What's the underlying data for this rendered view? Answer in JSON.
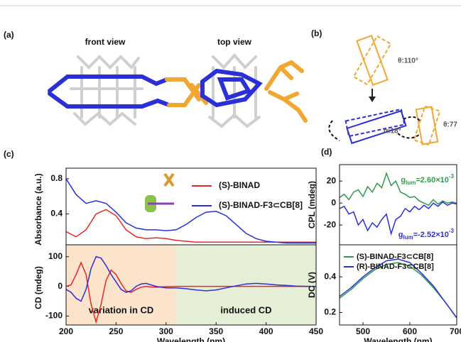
{
  "figure": {
    "panel_labels": [
      "(a)",
      "(b)",
      "(c)",
      "(d)"
    ],
    "front_view": "front view",
    "top_view": "top view",
    "theta_1": "θ:110°",
    "alpha": "α:18°",
    "theta_2": "θ:77"
  },
  "chart_data": [
    {
      "type": "line",
      "ylabel": "Absorbance (a.u.)",
      "xlim": [
        200,
        450
      ],
      "ylim": [
        0.05,
        0.92
      ],
      "yticks": [
        0.4,
        0.8
      ],
      "legend": "upper right",
      "x": [
        200,
        210,
        220,
        230,
        240,
        250,
        260,
        270,
        280,
        290,
        300,
        310,
        320,
        330,
        340,
        350,
        360,
        370,
        380,
        390,
        400,
        410,
        420,
        430,
        440,
        450
      ],
      "series": [
        {
          "name": "(S)-BINAD",
          "color": "#e8262a",
          "values": [
            0.2,
            0.14,
            0.22,
            0.4,
            0.45,
            0.38,
            0.22,
            0.14,
            0.12,
            0.13,
            0.12,
            0.1,
            0.09,
            0.08,
            0.08,
            0.08,
            0.08,
            0.08,
            0.08,
            0.08,
            0.08,
            0.08,
            0.08,
            0.08,
            0.08,
            0.08
          ]
        },
        {
          "name": "(S)-BINAD-F3⊂CB[8]",
          "color": "#2b2fd6",
          "values": [
            0.8,
            0.62,
            0.52,
            0.55,
            0.52,
            0.42,
            0.3,
            0.24,
            0.22,
            0.22,
            0.21,
            0.22,
            0.28,
            0.36,
            0.42,
            0.43,
            0.38,
            0.28,
            0.18,
            0.12,
            0.09,
            0.08,
            0.07,
            0.07,
            0.07,
            0.07
          ]
        }
      ]
    },
    {
      "type": "line",
      "ylabel": "CD (mdeg)",
      "xlabel": "Wavelength (nm)",
      "xlim": [
        200,
        450
      ],
      "ylim": [
        -130,
        140
      ],
      "xticks": [
        200,
        250,
        300,
        350,
        400,
        450
      ],
      "yticks": [
        -100,
        0,
        100
      ],
      "regions": [
        {
          "from": 200,
          "to": 310,
          "color": "#fbe3cc",
          "label": "variation in CD"
        },
        {
          "from": 310,
          "to": 450,
          "color": "#e4efd6",
          "label": "induced CD"
        }
      ],
      "x": [
        200,
        205,
        210,
        215,
        220,
        225,
        230,
        235,
        240,
        245,
        250,
        255,
        260,
        265,
        270,
        275,
        280,
        285,
        290,
        295,
        300,
        310,
        320,
        330,
        340,
        350,
        360,
        370,
        380,
        390,
        400,
        410,
        420,
        430,
        440,
        450
      ],
      "series": [
        {
          "color": "#e8262a",
          "values": [
            0,
            5,
            40,
            80,
            40,
            -60,
            -120,
            -60,
            20,
            55,
            40,
            10,
            -15,
            -20,
            -10,
            -3,
            0,
            -2,
            -3,
            -2,
            -1,
            0,
            0,
            0,
            0,
            0,
            0,
            0,
            0,
            0,
            0,
            0,
            0,
            0,
            0,
            0
          ]
        },
        {
          "color": "#2b2fd6",
          "values": [
            -10,
            -20,
            -40,
            -50,
            -10,
            60,
            100,
            95,
            70,
            40,
            15,
            -10,
            -20,
            -15,
            0,
            8,
            10,
            5,
            0,
            -3,
            -5,
            -5,
            -8,
            -12,
            -15,
            -12,
            -5,
            2,
            8,
            10,
            8,
            5,
            3,
            1,
            0,
            0
          ]
        }
      ]
    },
    {
      "type": "line",
      "ylabel": "CPL (mdeg)",
      "xlim": [
        450,
        700
      ],
      "ylim": [
        -38,
        35
      ],
      "yticks": [
        -20,
        0,
        20
      ],
      "annotations": [
        {
          "base": "g",
          "sub": "lum",
          "text": "=2.60×10",
          "sup": "-3",
          "color": "#2e9a4a"
        },
        {
          "base": "g",
          "sub": "lum",
          "text": "=-2.52×10",
          "sup": "-3",
          "color": "#2b2fd6"
        }
      ],
      "x": [
        450,
        460,
        470,
        480,
        490,
        500,
        510,
        520,
        530,
        540,
        550,
        560,
        570,
        580,
        590,
        600,
        610,
        620,
        630,
        640,
        650,
        660,
        670,
        680,
        690,
        700
      ],
      "series": [
        {
          "color": "#2e9a4a",
          "values": [
            5,
            8,
            3,
            10,
            12,
            6,
            15,
            10,
            18,
            14,
            27,
            16,
            20,
            10,
            8,
            5,
            6,
            2,
            0,
            -2,
            3,
            -1,
            2,
            0,
            1,
            0
          ]
        },
        {
          "color": "#2b2fd6",
          "values": [
            -5,
            -3,
            -10,
            -8,
            -20,
            -15,
            -25,
            -18,
            -22,
            -15,
            -10,
            -28,
            -15,
            -12,
            -5,
            -8,
            -3,
            -6,
            -2,
            -5,
            0,
            -3,
            1,
            -2,
            0,
            -1
          ]
        }
      ]
    },
    {
      "type": "line",
      "ylabel": "DC (V)",
      "xlabel": "Wavelength (nm)",
      "xlim": [
        450,
        700
      ],
      "ylim": [
        0.13,
        0.58
      ],
      "xticks": [
        500,
        600,
        700
      ],
      "yticks": [
        0.2,
        0.4
      ],
      "legend": "upper left",
      "x": [
        450,
        475,
        500,
        525,
        550,
        575,
        600,
        625,
        650,
        675,
        700
      ],
      "series": [
        {
          "name": "(S)-BINAD-F3⊂CB[8]",
          "color": "#2e9a4a",
          "values": [
            0.28,
            0.33,
            0.39,
            0.44,
            0.47,
            0.48,
            0.46,
            0.41,
            0.34,
            0.26,
            0.17
          ]
        },
        {
          "name": "(R)-BINAD-F3⊂CB[8]",
          "color": "#2b2fd6",
          "values": [
            0.29,
            0.34,
            0.4,
            0.45,
            0.49,
            0.5,
            0.48,
            0.42,
            0.35,
            0.26,
            0.17
          ]
        }
      ]
    }
  ]
}
